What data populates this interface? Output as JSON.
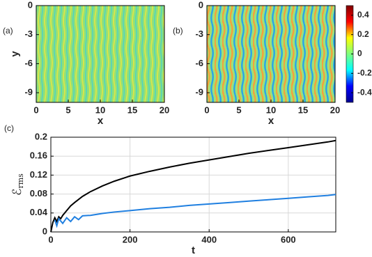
{
  "chart_data": [
    {
      "type": "heatmap",
      "panel": "(a)",
      "xlabel": "x",
      "ylabel": "y",
      "xlim": [
        0,
        20
      ],
      "xticks": [
        0,
        5,
        10,
        15,
        20
      ],
      "ylim": [
        -10,
        0
      ],
      "yticks": [
        0,
        -3,
        -6,
        -9
      ],
      "colormap": "jet",
      "clim": [
        -0.5,
        0.5
      ]
    },
    {
      "type": "heatmap",
      "panel": "(b)",
      "xlabel": "x",
      "xlim": [
        0,
        20
      ],
      "xticks": [
        0,
        5,
        10,
        15,
        20
      ],
      "ylim": [
        -10,
        0
      ],
      "yticks": [
        0,
        -3,
        -6,
        -9
      ],
      "colormap": "jet",
      "clim": [
        -0.5,
        0.5
      ],
      "colorbar": true,
      "cticks": [
        0.4,
        0.2,
        0,
        -0.2,
        -0.4
      ]
    },
    {
      "type": "line",
      "panel": "(c)",
      "xlabel": "t",
      "ylabel": {
        "symbol": "ℰ",
        "subscript": "rms"
      },
      "xlim": [
        0,
        720
      ],
      "xticks": [
        0,
        200,
        400,
        600
      ],
      "ylim": [
        0,
        0.2
      ],
      "yticks": [
        0,
        0.04,
        0.08,
        0.12,
        0.16,
        0.2
      ],
      "grid": true,
      "series": [
        {
          "color": "#000000",
          "x": [
            0,
            5,
            10,
            15,
            20,
            25,
            30,
            40,
            50,
            60,
            80,
            100,
            130,
            160,
            200,
            250,
            300,
            350,
            400,
            450,
            500,
            550,
            600,
            650,
            700,
            720
          ],
          "values": [
            0,
            0.02,
            0.03,
            0.022,
            0.032,
            0.028,
            0.035,
            0.045,
            0.055,
            0.062,
            0.075,
            0.085,
            0.097,
            0.107,
            0.118,
            0.128,
            0.137,
            0.145,
            0.152,
            0.159,
            0.166,
            0.172,
            0.178,
            0.184,
            0.19,
            0.193
          ]
        },
        {
          "color": "#1f7fe0",
          "x": [
            10,
            15,
            20,
            30,
            40,
            50,
            60,
            70,
            80,
            100,
            130,
            160,
            200,
            250,
            300,
            350,
            400,
            450,
            500,
            550,
            600,
            650,
            700,
            720
          ],
          "values": [
            0.025,
            0.013,
            0.028,
            0.018,
            0.03,
            0.022,
            0.032,
            0.026,
            0.034,
            0.035,
            0.039,
            0.042,
            0.045,
            0.049,
            0.052,
            0.056,
            0.059,
            0.062,
            0.065,
            0.068,
            0.071,
            0.074,
            0.077,
            0.079
          ]
        }
      ]
    }
  ]
}
